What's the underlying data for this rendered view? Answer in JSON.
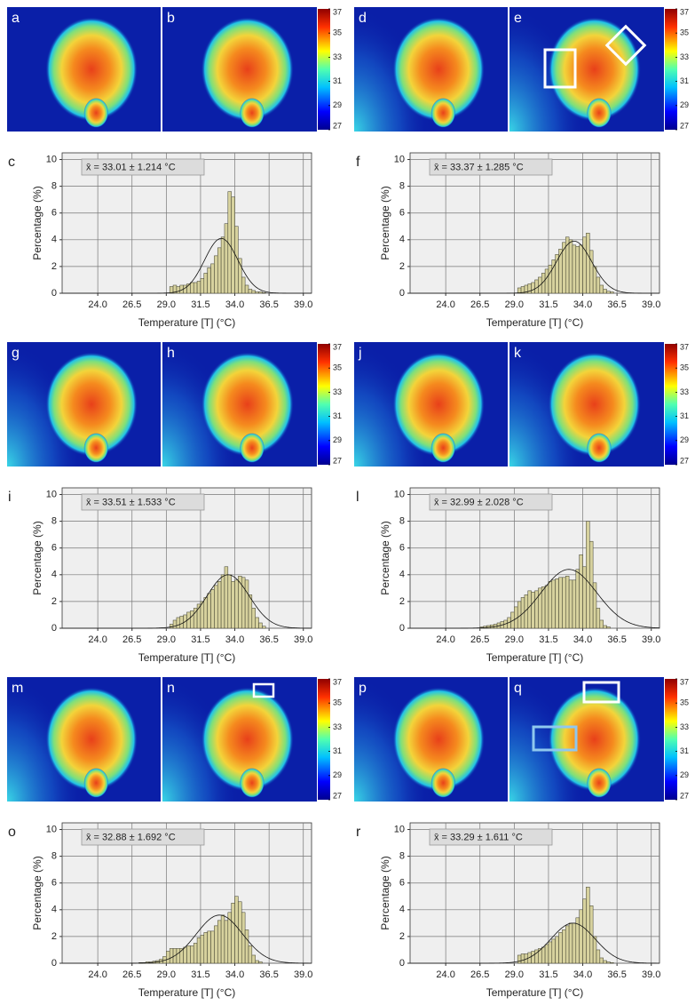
{
  "chart_data": [
    {
      "type": "histogram",
      "panel_label": "c",
      "annotation": "x̄ = 33.01 ± 1.214 °C",
      "xlabel": "Temperature [T] (°C)",
      "ylabel": "Percentage (%)",
      "xlim": [
        21.4,
        39.6
      ],
      "xticks": [
        {
          "value": 24,
          "label": "24.0"
        },
        26.5,
        {
          "value": 29,
          "label": "29.0"
        },
        31.5,
        {
          "value": 34,
          "label": "34.0"
        },
        36.5,
        {
          "value": 39,
          "label": "39.0"
        }
      ],
      "ylim": [
        0,
        10.5
      ],
      "yticks": [
        0,
        2,
        4,
        6,
        8,
        10
      ],
      "grid": true,
      "color": "#d7d29e",
      "bins": [
        29.25,
        29.5,
        29.75,
        30,
        30.25,
        30.5,
        30.75,
        31,
        31.25,
        31.5,
        31.75,
        32,
        32.25,
        32.5,
        32.75,
        33,
        33.25,
        33.5,
        33.75,
        34,
        34.25,
        34.5,
        34.75,
        35,
        35.25,
        35.5,
        35.75,
        36,
        36.25
      ],
      "values": [
        0.5,
        0.6,
        0.5,
        0.6,
        0.6,
        0.7,
        0.8,
        0.8,
        0.9,
        1.1,
        1.5,
        1.9,
        2.2,
        2.8,
        3.4,
        4.2,
        5.2,
        7.6,
        7.2,
        5.0,
        2.6,
        1.2,
        0.6,
        0.3,
        0.2,
        0.1,
        0.1,
        0.05
      ],
      "fit": {
        "mean": 33.01,
        "sd": 1.214,
        "peak": 4.1
      }
    },
    {
      "type": "histogram",
      "panel_label": "f",
      "annotation": "x̄ = 33.37 ± 1.285 °C",
      "xlabel": "Temperature [T] (°C)",
      "ylabel": "Percentage (%)",
      "xlim": [
        21.4,
        39.6
      ],
      "xticks": [
        {
          "value": 24,
          "label": "24.0"
        },
        26.5,
        {
          "value": 29,
          "label": "29.0"
        },
        31.5,
        {
          "value": 34,
          "label": "34.0"
        },
        36.5,
        {
          "value": 39,
          "label": "39.0"
        }
      ],
      "ylim": [
        0,
        10.5
      ],
      "yticks": [
        0,
        2,
        4,
        6,
        8,
        10
      ],
      "grid": true,
      "color": "#d7d29e",
      "bins": [
        29.25,
        29.5,
        29.75,
        30,
        30.25,
        30.5,
        30.75,
        31,
        31.25,
        31.5,
        31.75,
        32,
        32.25,
        32.5,
        32.75,
        33,
        33.25,
        33.5,
        33.75,
        34,
        34.25,
        34.5,
        34.75,
        35,
        35.25,
        35.5,
        35.75,
        36,
        36.25
      ],
      "values": [
        0.4,
        0.5,
        0.6,
        0.7,
        0.8,
        1.0,
        1.2,
        1.5,
        1.8,
        2.1,
        2.5,
        2.9,
        3.3,
        3.8,
        4.2,
        4.0,
        3.6,
        3.5,
        3.6,
        4.2,
        4.5,
        3.2,
        2.0,
        1.2,
        0.6,
        0.3,
        0.15,
        0.1
      ],
      "fit": {
        "mean": 33.37,
        "sd": 1.285,
        "peak": 3.9
      }
    },
    {
      "type": "histogram",
      "panel_label": "i",
      "annotation": "x̄ = 33.51 ± 1.533 °C",
      "xlabel": "Temperature [T] (°C)",
      "ylabel": "Percentage (%)",
      "xlim": [
        21.4,
        39.6
      ],
      "xticks": [
        {
          "value": 24,
          "label": "24.0"
        },
        26.5,
        {
          "value": 29,
          "label": "29.0"
        },
        31.5,
        {
          "value": 34,
          "label": "34.0"
        },
        36.5,
        {
          "value": 39,
          "label": "39.0"
        }
      ],
      "ylim": [
        0,
        10.5
      ],
      "yticks": [
        0,
        2,
        4,
        6,
        8,
        10
      ],
      "grid": true,
      "color": "#d7d29e",
      "bins": [
        29.25,
        29.5,
        29.75,
        30,
        30.25,
        30.5,
        30.75,
        31,
        31.25,
        31.5,
        31.75,
        32,
        32.25,
        32.5,
        32.75,
        33,
        33.25,
        33.5,
        33.75,
        34,
        34.25,
        34.5,
        34.75,
        35,
        35.25,
        35.5,
        35.75,
        36,
        36.25
      ],
      "values": [
        0.3,
        0.6,
        0.8,
        0.9,
        1.0,
        1.2,
        1.3,
        1.5,
        1.8,
        2.0,
        2.3,
        2.6,
        2.9,
        3.2,
        3.5,
        4.0,
        4.6,
        4.0,
        3.5,
        3.6,
        3.9,
        3.8,
        3.6,
        2.5,
        1.5,
        0.8,
        0.4,
        0.15
      ],
      "fit": {
        "mean": 33.51,
        "sd": 1.533,
        "peak": 4.0
      }
    },
    {
      "type": "histogram",
      "panel_label": "l",
      "annotation": "x̄ = 32.99 ± 2.028 °C",
      "xlabel": "Temperature [T] (°C)",
      "ylabel": "Percentage (%)",
      "xlim": [
        21.4,
        39.6
      ],
      "xticks": [
        {
          "value": 24,
          "label": "24.0"
        },
        26.5,
        {
          "value": 29,
          "label": "29.0"
        },
        31.5,
        {
          "value": 34,
          "label": "34.0"
        },
        36.5,
        {
          "value": 39,
          "label": "39.0"
        }
      ],
      "ylim": [
        0,
        10.5
      ],
      "yticks": [
        0,
        2,
        4,
        6,
        8,
        10
      ],
      "grid": true,
      "color": "#d7d29e",
      "bins": [
        26.5,
        26.75,
        27,
        27.25,
        27.5,
        27.75,
        28,
        28.25,
        28.5,
        28.75,
        29,
        29.25,
        29.5,
        29.75,
        30,
        30.25,
        30.5,
        30.75,
        31,
        31.25,
        31.5,
        31.75,
        32,
        32.25,
        32.5,
        32.75,
        33,
        33.25,
        33.5,
        33.75,
        34,
        34.25,
        34.5,
        34.75,
        35,
        35.25,
        35.5,
        35.75,
        36
      ],
      "values": [
        0.1,
        0.15,
        0.2,
        0.25,
        0.3,
        0.4,
        0.5,
        0.6,
        0.8,
        1.2,
        1.6,
        2.0,
        2.3,
        2.5,
        2.8,
        2.7,
        2.8,
        3.0,
        3.1,
        3.2,
        3.5,
        3.6,
        3.7,
        3.8,
        3.8,
        3.9,
        3.6,
        3.6,
        4.4,
        5.5,
        4.6,
        8.0,
        6.5,
        3.4,
        1.5,
        0.6,
        0.2,
        0.1
      ],
      "fit": {
        "mean": 32.99,
        "sd": 2.028,
        "peak": 4.4
      }
    },
    {
      "type": "histogram",
      "panel_label": "o",
      "annotation": "x̄ = 32.88 ± 1.692 °C",
      "xlabel": "Temperature [T] (°C)",
      "ylabel": "Percentage (%)",
      "xlim": [
        21.4,
        39.6
      ],
      "xticks": [
        {
          "value": 24,
          "label": "24.0"
        },
        26.5,
        {
          "value": 29,
          "label": "29.0"
        },
        31.5,
        {
          "value": 34,
          "label": "34.0"
        },
        36.5,
        {
          "value": 39,
          "label": "39.0"
        }
      ],
      "ylim": [
        0,
        10.5
      ],
      "yticks": [
        0,
        2,
        4,
        6,
        8,
        10
      ],
      "grid": true,
      "color": "#d7d29e",
      "bins": [
        27,
        27.25,
        27.5,
        27.75,
        28,
        28.25,
        28.5,
        28.75,
        29,
        29.25,
        29.5,
        29.75,
        30,
        30.25,
        30.5,
        30.75,
        31,
        31.25,
        31.5,
        31.75,
        32,
        32.25,
        32.5,
        32.75,
        33,
        33.25,
        33.5,
        33.75,
        34,
        34.25,
        34.5,
        34.75,
        35,
        35.25,
        35.5,
        35.75,
        36
      ],
      "values": [
        0.05,
        0.05,
        0.1,
        0.1,
        0.15,
        0.2,
        0.3,
        0.5,
        0.9,
        1.1,
        1.1,
        1.1,
        1.1,
        1.2,
        1.3,
        1.3,
        1.5,
        1.9,
        2.1,
        2.3,
        2.4,
        2.4,
        2.8,
        3.2,
        3.6,
        3.2,
        3.8,
        4.5,
        5.0,
        4.6,
        3.8,
        2.5,
        1.3,
        0.6,
        0.2,
        0.1
      ],
      "fit": {
        "mean": 32.88,
        "sd": 1.692,
        "peak": 3.6
      }
    },
    {
      "type": "histogram",
      "panel_label": "r",
      "annotation": "x̄ = 33.29 ± 1.611 °C",
      "xlabel": "Temperature [T] (°C)",
      "ylabel": "Percentage (%)",
      "xlim": [
        21.4,
        39.6
      ],
      "xticks": [
        {
          "value": 24,
          "label": "24.0"
        },
        26.5,
        {
          "value": 29,
          "label": "29.0"
        },
        31.5,
        {
          "value": 34,
          "label": "34.0"
        },
        36.5,
        {
          "value": 39,
          "label": "39.0"
        }
      ],
      "ylim": [
        0,
        10.5
      ],
      "yticks": [
        0,
        2,
        4,
        6,
        8,
        10
      ],
      "grid": true,
      "color": "#d7d29e",
      "bins": [
        29.25,
        29.5,
        29.75,
        30,
        30.25,
        30.5,
        30.75,
        31,
        31.25,
        31.5,
        31.75,
        32,
        32.25,
        32.5,
        32.75,
        33,
        33.25,
        33.5,
        33.75,
        34,
        34.25,
        34.5,
        34.75,
        35,
        35.25,
        35.5,
        35.75,
        36,
        36.25
      ],
      "values": [
        0.6,
        0.7,
        0.7,
        0.8,
        0.9,
        1.0,
        1.1,
        1.2,
        1.4,
        1.6,
        1.8,
        2.0,
        2.3,
        2.5,
        2.8,
        3.0,
        3.0,
        3.4,
        4.0,
        4.8,
        5.7,
        4.3,
        2.0,
        1.0,
        0.4,
        0.2,
        0.1,
        0.05
      ],
      "fit": {
        "mean": 33.29,
        "sd": 1.611,
        "peak": 3.0
      }
    }
  ],
  "image_groups": [
    {
      "labels": [
        "a",
        "b"
      ],
      "colorbar": {
        "lim": [
          27,
          37
        ],
        "ticks": [
          27,
          29,
          31,
          33,
          35,
          37
        ]
      }
    },
    {
      "labels": [
        "d",
        "e"
      ],
      "colorbar": {
        "lim": [
          27,
          37
        ],
        "ticks": [
          27,
          29,
          31,
          33,
          35,
          37
        ]
      }
    },
    {
      "labels": [
        "g",
        "h"
      ],
      "colorbar": {
        "lim": [
          27,
          37
        ],
        "ticks": [
          27,
          29,
          31,
          33,
          35,
          37
        ]
      }
    },
    {
      "labels": [
        "j",
        "k"
      ],
      "colorbar": {
        "lim": [
          27,
          37
        ],
        "ticks": [
          27,
          29,
          31,
          33,
          35,
          37
        ]
      }
    },
    {
      "labels": [
        "m",
        "n"
      ],
      "colorbar": {
        "lim": [
          27,
          37
        ],
        "ticks": [
          27,
          29,
          31,
          33,
          35,
          37
        ]
      }
    },
    {
      "labels": [
        "p",
        "q"
      ],
      "colorbar": {
        "lim": [
          27,
          37
        ],
        "ticks": [
          27,
          29,
          31,
          33,
          35,
          37
        ]
      }
    }
  ]
}
